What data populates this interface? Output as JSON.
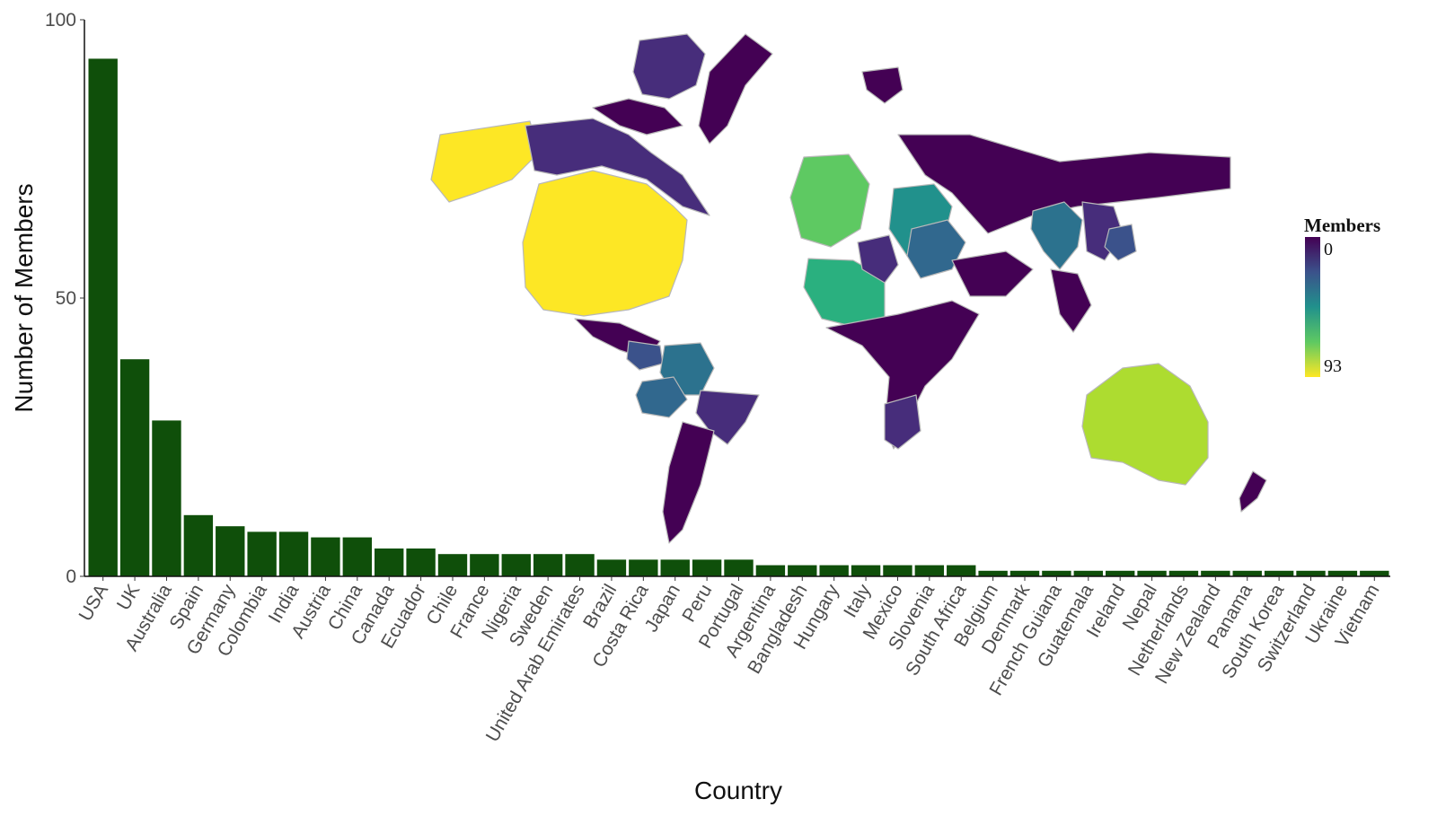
{
  "chart_data": {
    "type": "bar",
    "xlabel": "Country",
    "ylabel": "Number of Members",
    "ylim": [
      0,
      100
    ],
    "yticks": [
      0,
      50,
      100
    ],
    "grid": false,
    "bar_color": "#0f4f0a",
    "categories": [
      "USA",
      "UK",
      "Australia",
      "Spain",
      "Germany",
      "Colombia",
      "India",
      "Austria",
      "China",
      "Canada",
      "Ecuador",
      "Chile",
      "France",
      "Nigeria",
      "Sweden",
      "United Arab Emirates",
      "Brazil",
      "Costa Rica",
      "Japan",
      "Peru",
      "Portugal",
      "Argentina",
      "Bangladesh",
      "Hungary",
      "Italy",
      "Mexico",
      "Slovenia",
      "South Africa",
      "Belgium",
      "Denmark",
      "French Guiana",
      "Guatemala",
      "Ireland",
      "Nepal",
      "Netherlands",
      "New Zealand",
      "Panama",
      "South Korea",
      "Switzerland",
      "Ukraine",
      "Vietnam"
    ],
    "values": [
      93,
      39,
      28,
      11,
      9,
      8,
      8,
      7,
      7,
      5,
      5,
      4,
      4,
      4,
      4,
      4,
      3,
      3,
      3,
      3,
      3,
      2,
      2,
      2,
      2,
      2,
      2,
      2,
      1,
      1,
      1,
      1,
      1,
      1,
      1,
      1,
      1,
      1,
      1,
      1,
      1
    ],
    "inset_map": {
      "type": "cartogram",
      "legend_title": "Members",
      "legend_min_label": "0",
      "legend_max_label": "93",
      "colorscale": [
        "#440154",
        "#3b528b",
        "#21918c",
        "#5ec962",
        "#fde725"
      ]
    }
  }
}
